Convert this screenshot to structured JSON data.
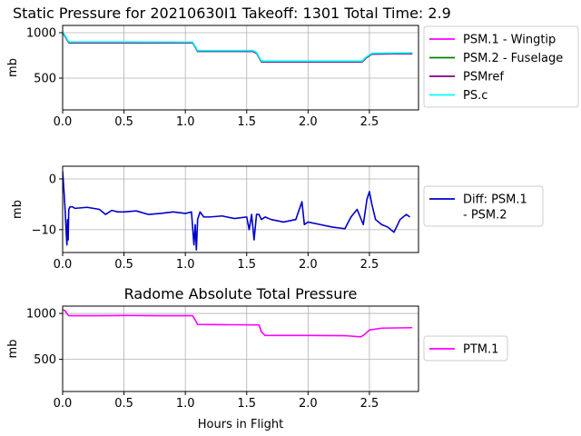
{
  "chart_data": [
    {
      "type": "line",
      "title": "Static Pressure for 20210630I1 Takeoff: 1301 Total Time: 2.9",
      "xlabel": "",
      "ylabel": "mb",
      "xlim": [
        0,
        2.9
      ],
      "ylim": [
        150,
        1080
      ],
      "xticks": [
        0.0,
        0.5,
        1.0,
        1.5,
        2.0,
        2.5
      ],
      "xtick_labels": [
        "0.0",
        "0.5",
        "1.0",
        "1.5",
        "2.0",
        "2.5"
      ],
      "yticks": [
        500,
        1000
      ],
      "ytick_labels": [
        "500",
        "1000"
      ],
      "grid": true,
      "legend": "outside-right",
      "series": [
        {
          "name": "PSM.1 - Wingtip",
          "color": "#ff00ff",
          "x": [
            0,
            0.02,
            0.05,
            0.5,
            1.06,
            1.08,
            1.1,
            1.55,
            1.58,
            1.62,
            2.0,
            2.44,
            2.47,
            2.52,
            2.85
          ],
          "y": [
            1005,
            960,
            890,
            890,
            888,
            845,
            795,
            795,
            775,
            680,
            680,
            680,
            720,
            765,
            770
          ]
        },
        {
          "name": "PSM.2 - Fuselage",
          "color": "#008000",
          "x": [
            0,
            0.02,
            0.05,
            0.5,
            1.06,
            1.08,
            1.1,
            1.55,
            1.58,
            1.62,
            2.0,
            2.44,
            2.47,
            2.52,
            2.85
          ],
          "y": [
            1005,
            960,
            890,
            890,
            888,
            845,
            795,
            795,
            775,
            680,
            680,
            680,
            720,
            765,
            770
          ]
        },
        {
          "name": "PSMref",
          "color": "#800080",
          "x": [
            0,
            0.02,
            0.05,
            0.5,
            1.06,
            1.08,
            1.1,
            1.55,
            1.58,
            1.62,
            2.0,
            2.44,
            2.47,
            2.52,
            2.85
          ],
          "y": [
            1005,
            960,
            890,
            890,
            888,
            845,
            795,
            795,
            775,
            680,
            680,
            680,
            720,
            765,
            770
          ]
        },
        {
          "name": "PS.c",
          "color": "#00ffff",
          "x": [
            0,
            0.02,
            0.05,
            0.5,
            1.06,
            1.08,
            1.1,
            1.55,
            1.58,
            1.62,
            2.0,
            2.44,
            2.47,
            2.52,
            2.85
          ],
          "y": [
            1012,
            970,
            898,
            898,
            896,
            852,
            803,
            803,
            783,
            688,
            688,
            688,
            728,
            773,
            778
          ]
        }
      ]
    },
    {
      "type": "line",
      "title": "",
      "xlabel": "",
      "ylabel": "mb",
      "xlim": [
        0,
        2.9
      ],
      "ylim": [
        -14.5,
        2.5
      ],
      "xticks": [
        0.0,
        0.5,
        1.0,
        1.5,
        2.0,
        2.5
      ],
      "xtick_labels": [
        "0.0",
        "0.5",
        "1.0",
        "1.5",
        "2.0",
        "2.5"
      ],
      "yticks": [
        0,
        -10
      ],
      "ytick_labels": [
        "0",
        "−10"
      ],
      "grid": true,
      "legend": "outside-right",
      "series": [
        {
          "name": "Diff: PSM.1\n- PSM.2",
          "color": "#0000cd",
          "x": [
            0,
            0.01,
            0.02,
            0.03,
            0.035,
            0.04,
            0.045,
            0.05,
            0.06,
            0.08,
            0.1,
            0.2,
            0.3,
            0.35,
            0.4,
            0.45,
            0.5,
            0.6,
            0.7,
            0.8,
            0.9,
            1.0,
            1.05,
            1.07,
            1.08,
            1.09,
            1.1,
            1.12,
            1.15,
            1.2,
            1.3,
            1.4,
            1.5,
            1.52,
            1.54,
            1.56,
            1.58,
            1.6,
            1.62,
            1.65,
            1.7,
            1.8,
            1.9,
            1.95,
            1.97,
            2.0,
            2.1,
            2.2,
            2.3,
            2.35,
            2.4,
            2.45,
            2.48,
            2.5,
            2.52,
            2.55,
            2.6,
            2.65,
            2.7,
            2.75,
            2.8,
            2.83
          ],
          "y": [
            1.5,
            -2,
            -6,
            -11,
            -13,
            -8,
            -12,
            -6,
            -5.5,
            -5.5,
            -5.8,
            -5.6,
            -6,
            -7,
            -6.2,
            -6.5,
            -6.5,
            -6.3,
            -7,
            -6.8,
            -6.5,
            -6.8,
            -6.5,
            -13,
            -9,
            -14,
            -8,
            -6.5,
            -7.5,
            -7.5,
            -7.3,
            -7.8,
            -7.5,
            -10,
            -7,
            -12,
            -7,
            -7,
            -8,
            -7.5,
            -8,
            -8.5,
            -8,
            -4.5,
            -9,
            -8.5,
            -9,
            -9.5,
            -9.8,
            -7.5,
            -6,
            -9,
            -4,
            -2.5,
            -5,
            -8,
            -9,
            -9.5,
            -10.5,
            -8,
            -7,
            -7.5
          ]
        }
      ]
    },
    {
      "type": "line",
      "title": "Radome Absolute Total Pressure",
      "xlabel": "Hours in Flight",
      "ylabel": "mb",
      "xlim": [
        0,
        2.9
      ],
      "ylim": [
        150,
        1080
      ],
      "xticks": [
        0.0,
        0.5,
        1.0,
        1.5,
        2.0,
        2.5
      ],
      "xtick_labels": [
        "0.0",
        "0.5",
        "1.0",
        "1.5",
        "2.0",
        "2.5"
      ],
      "yticks": [
        500,
        1000
      ],
      "ytick_labels": [
        "500",
        "1000"
      ],
      "grid": true,
      "legend": "outside-right",
      "series": [
        {
          "name": "PTM.1",
          "color": "#ff00ff",
          "x": [
            0,
            0.02,
            0.04,
            0.05,
            0.3,
            0.5,
            0.8,
            1.06,
            1.08,
            1.1,
            1.3,
            1.6,
            1.62,
            1.65,
            2.0,
            2.3,
            2.43,
            2.46,
            2.5,
            2.6,
            2.85
          ],
          "y": [
            1040,
            1030,
            990,
            975,
            975,
            978,
            975,
            975,
            930,
            880,
            878,
            875,
            800,
            760,
            760,
            758,
            745,
            770,
            820,
            840,
            845
          ]
        }
      ]
    }
  ]
}
